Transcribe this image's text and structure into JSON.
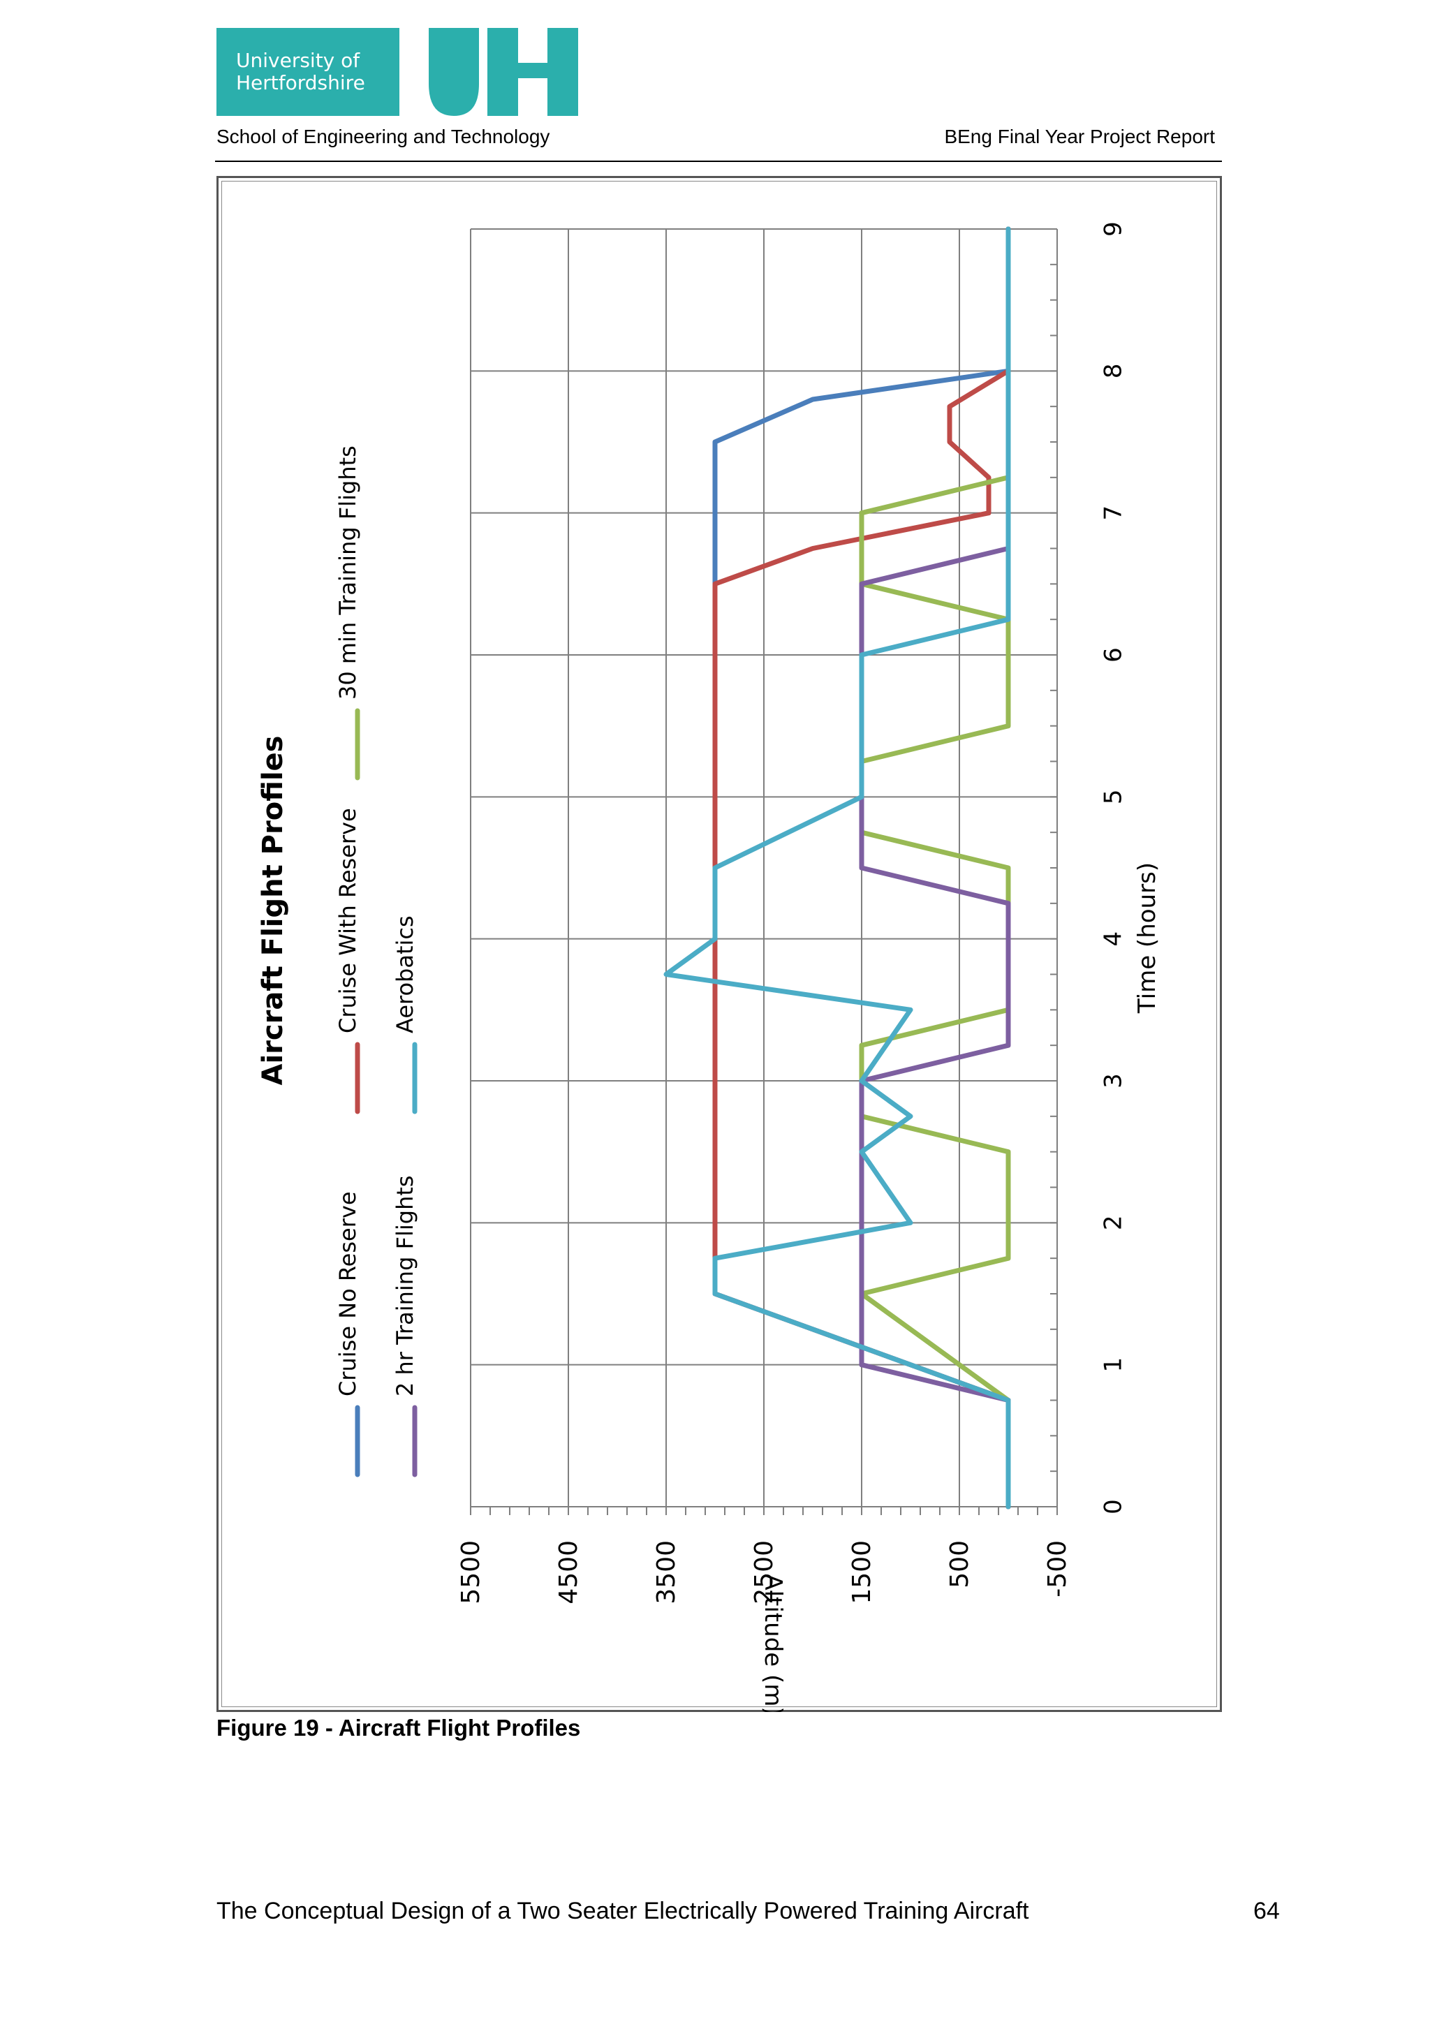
{
  "header": {
    "logo": {
      "university_line1": "University of",
      "university_line2": "Hertfordshire",
      "mark": "UH",
      "color": "#2bafac"
    },
    "left": "School of Engineering and Technology",
    "right": "BEng Final Year Project Report"
  },
  "figure": {
    "caption": "Figure 19 - Aircraft Flight Profiles"
  },
  "footer": {
    "title": "The Conceptual Design of a Two Seater Electrically Powered Training Aircraft",
    "page_number": "64"
  },
  "chart_data": {
    "type": "line",
    "orientation": "rotated-90-ccw",
    "title": "Aircraft Flight Profiles",
    "xlabel": "Time (hours)",
    "ylabel": "Altitude (m)",
    "xlim": [
      0,
      9
    ],
    "ylim": [
      -500,
      5500
    ],
    "x_ticks": [
      "0",
      "1",
      "2",
      "3",
      "4",
      "5",
      "6",
      "7",
      "8",
      "9"
    ],
    "y_ticks": [
      "5500",
      "4500",
      "3500",
      "2500",
      "1500",
      "500",
      "-500"
    ],
    "grid": true,
    "legend_position": "top",
    "series": [
      {
        "name": "Cruise No Reserve",
        "color": "#4a7ebb",
        "points": [
          [
            0,
            0
          ],
          [
            0.75,
            0
          ],
          [
            1.5,
            3000
          ],
          [
            7.5,
            3000
          ],
          [
            7.8,
            2000
          ],
          [
            8,
            0
          ],
          [
            9,
            0
          ]
        ]
      },
      {
        "name": "Cruise With Reserve",
        "color": "#be4b48",
        "points": [
          [
            0,
            0
          ],
          [
            0.75,
            0
          ],
          [
            1.5,
            3000
          ],
          [
            6.5,
            3000
          ],
          [
            6.75,
            2000
          ],
          [
            7,
            200
          ],
          [
            7.25,
            200
          ],
          [
            7.5,
            600
          ],
          [
            7.75,
            600
          ],
          [
            8,
            0
          ],
          [
            9,
            0
          ]
        ]
      },
      {
        "name": "30 min Training Flights",
        "color": "#98b954",
        "points": [
          [
            0,
            0
          ],
          [
            0.75,
            0
          ],
          [
            1.5,
            1500
          ],
          [
            1.75,
            0
          ],
          [
            2.5,
            0
          ],
          [
            2.75,
            1500
          ],
          [
            3,
            1500
          ],
          [
            3.25,
            1500
          ],
          [
            3.5,
            0
          ],
          [
            4.5,
            0
          ],
          [
            4.75,
            1500
          ],
          [
            5,
            1500
          ],
          [
            5.25,
            1500
          ],
          [
            5.5,
            0
          ],
          [
            6.25,
            0
          ],
          [
            6.5,
            1500
          ],
          [
            7,
            1500
          ],
          [
            7.25,
            0
          ],
          [
            9,
            0
          ]
        ]
      },
      {
        "name": "2 hr Training Flights",
        "color": "#7d5fa0",
        "points": [
          [
            0,
            0
          ],
          [
            0.75,
            0
          ],
          [
            1,
            1500
          ],
          [
            3,
            1500
          ],
          [
            3.25,
            0
          ],
          [
            4.25,
            0
          ],
          [
            4.5,
            1500
          ],
          [
            6.5,
            1500
          ],
          [
            6.75,
            0
          ],
          [
            9,
            0
          ]
        ]
      },
      {
        "name": "Aerobatics",
        "color": "#4bacc6",
        "points": [
          [
            0,
            0
          ],
          [
            0.75,
            0
          ],
          [
            1,
            1000
          ],
          [
            1.25,
            2000
          ],
          [
            1.5,
            3000
          ],
          [
            1.75,
            3000
          ],
          [
            2,
            1000
          ],
          [
            2.5,
            1500
          ],
          [
            2.75,
            1000
          ],
          [
            3,
            1500
          ],
          [
            3.5,
            1000
          ],
          [
            3.75,
            3500
          ],
          [
            4,
            3000
          ],
          [
            4.5,
            3000
          ],
          [
            5,
            1500
          ],
          [
            6,
            1500
          ],
          [
            6.25,
            0
          ],
          [
            9,
            0
          ]
        ]
      }
    ]
  }
}
